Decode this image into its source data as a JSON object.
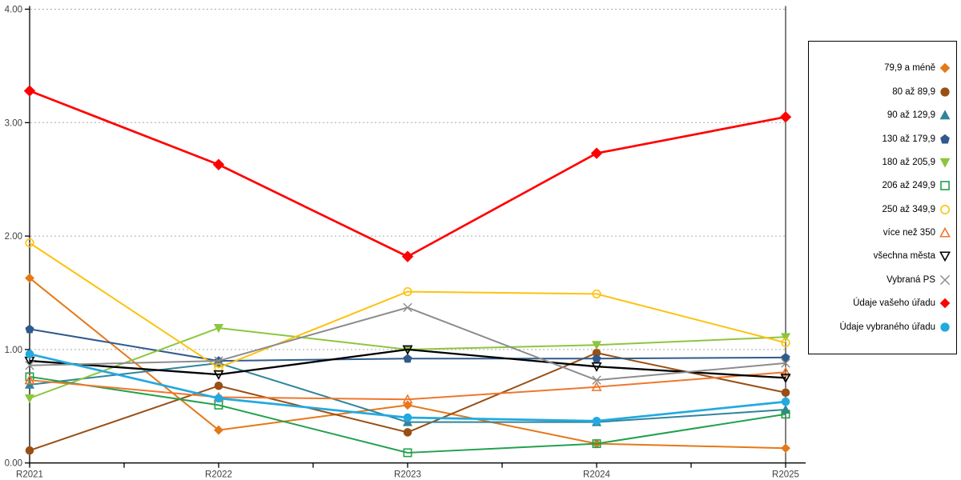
{
  "chart_data": {
    "type": "line",
    "title": "",
    "xlabel": "",
    "ylabel": "",
    "categories": [
      "R2021",
      "R2022",
      "R2023",
      "R2024",
      "R2025"
    ],
    "ylim": [
      0,
      4
    ],
    "ytick_values": [
      0,
      1,
      2,
      3,
      4
    ],
    "ytick_labels": [
      "0.00",
      "1.00",
      "2.00",
      "3.00",
      "4.00"
    ],
    "grid": "horizontal-dotted",
    "legend_position": "right",
    "series": [
      {
        "name": "79,9 a méně",
        "color": "#E57817",
        "marker": "diamond",
        "fill": "filled",
        "values": [
          1.63,
          0.29,
          0.51,
          0.17,
          0.13
        ]
      },
      {
        "name": "80 až 89,9",
        "color": "#994F14",
        "marker": "circle",
        "fill": "filled",
        "values": [
          0.11,
          0.68,
          0.27,
          0.97,
          0.62
        ]
      },
      {
        "name": "90 až 129,9",
        "color": "#31849B",
        "marker": "triangle-up",
        "fill": "filled",
        "values": [
          0.69,
          0.88,
          0.36,
          0.36,
          0.47
        ]
      },
      {
        "name": "130 až 179,9",
        "color": "#315A8C",
        "marker": "pentagon",
        "fill": "filled",
        "values": [
          1.18,
          0.9,
          0.92,
          0.92,
          0.93
        ]
      },
      {
        "name": "180 až 205,9",
        "color": "#8CC63F",
        "marker": "triangle-down",
        "fill": "filled",
        "values": [
          0.57,
          1.19,
          1.0,
          1.04,
          1.11
        ]
      },
      {
        "name": "206 až 249,9",
        "color": "#22A14D",
        "marker": "square",
        "fill": "open",
        "values": [
          0.76,
          0.51,
          0.09,
          0.17,
          0.43
        ]
      },
      {
        "name": "250 až 349,9",
        "color": "#FDC20F",
        "marker": "circle",
        "fill": "open",
        "values": [
          1.94,
          0.84,
          1.51,
          1.49,
          1.06
        ]
      },
      {
        "name": "více než 350",
        "color": "#F0762B",
        "marker": "triangle-up",
        "fill": "open",
        "values": [
          0.73,
          0.58,
          0.56,
          0.67,
          0.8
        ]
      },
      {
        "name": "všechna města",
        "color": "#000000",
        "marker": "triangle-down",
        "fill": "open",
        "values": [
          0.9,
          0.78,
          1.0,
          0.85,
          0.75
        ]
      },
      {
        "name": "Vybraná PS",
        "color": "#8C8C8C",
        "marker": "x",
        "fill": "open",
        "values": [
          0.86,
          0.9,
          1.37,
          0.73,
          0.88
        ]
      },
      {
        "name": "Údaje vašeho úřadu",
        "color": "#FF0000",
        "marker": "diamond",
        "fill": "filled",
        "values": [
          3.28,
          2.63,
          1.82,
          2.73,
          3.05
        ]
      },
      {
        "name": "Údaje vybraného úřadu",
        "color": "#22A9E0",
        "marker": "circle",
        "fill": "filled",
        "values": [
          0.96,
          0.57,
          0.4,
          0.37,
          0.54
        ]
      }
    ],
    "axis_color": "#000000",
    "grid_color": "#AAAAAA",
    "tick_label_color": "#3F3F3F"
  }
}
